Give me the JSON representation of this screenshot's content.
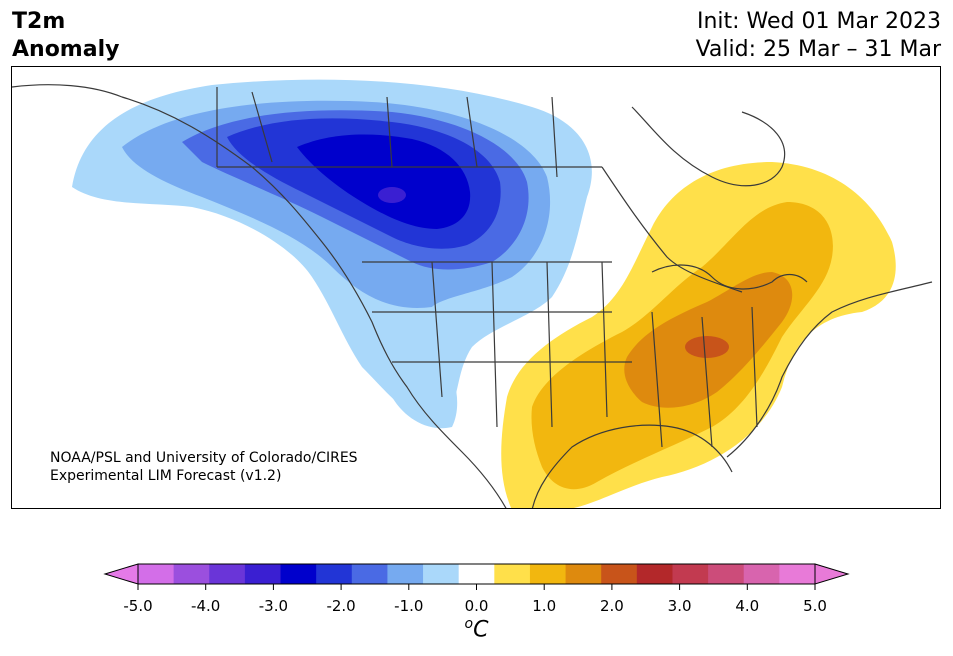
{
  "title": {
    "left_line1": "T2m",
    "left_line2": "Anomaly",
    "init": "Init: Wed 01 Mar 2023",
    "valid": "Valid: 25 Mar – 31 Mar"
  },
  "credit": {
    "line1": "NOAA/PSL and University of Colorado/CIRES",
    "line2": "Experimental LIM Forecast (v1.2)"
  },
  "colorbar": {
    "ticks": [
      "-5.0",
      "-4.0",
      "-3.0",
      "-2.0",
      "-1.0",
      "0.0",
      "1.0",
      "2.0",
      "3.0",
      "4.0",
      "5.0"
    ],
    "unit_sup": "o",
    "unit": "C",
    "colors": [
      "#d36ee8",
      "#9b4fde",
      "#6a35d8",
      "#3a1fd2",
      "#0000cc",
      "#2235d6",
      "#4a6ae4",
      "#76aaf0",
      "#aad8fa",
      "#ffffff",
      "#ffe04a",
      "#f2b70f",
      "#de8a0e",
      "#c8541a",
      "#b3282a",
      "#c23a50",
      "#cc4c7a",
      "#d864ae",
      "#e87ad8"
    ],
    "arrow_low": "#e57ae8",
    "arrow_high": "#e87ad8"
  },
  "map": {
    "cold_colors": [
      "#aad8fa",
      "#76aaf0",
      "#4a6ae4",
      "#2235d6",
      "#0000cc",
      "#3a1fd2"
    ],
    "warm_colors": [
      "#ffe04a",
      "#f2b70f",
      "#de8a0e",
      "#c8541a"
    ]
  }
}
